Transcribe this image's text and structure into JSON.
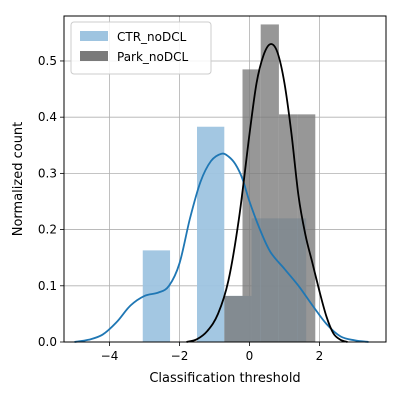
{
  "chart_data": {
    "type": "bar",
    "title": "",
    "xlabel": "Classification threshold",
    "ylabel": "Normalized count",
    "xlim": [
      -5.3,
      3.9
    ],
    "ylim": [
      0,
      0.58
    ],
    "xticks": [
      -4,
      -2,
      0,
      2
    ],
    "xtick_labels": [
      "−4",
      "−2",
      "0",
      "2"
    ],
    "yticks": [
      0.0,
      0.1,
      0.2,
      0.3,
      0.4,
      0.5
    ],
    "ytick_labels": [
      "0.0",
      "0.1",
      "0.2",
      "0.3",
      "0.4",
      "0.5"
    ],
    "grid": true,
    "legend_position": "top-left",
    "series": [
      {
        "name": "CTR_noDCL",
        "color": "#9ec4e0",
        "line_color": "#1f77b4",
        "bins": [
          {
            "x0": -3.05,
            "x1": -2.27,
            "value": 0.163
          },
          {
            "x0": -1.5,
            "x1": -0.72,
            "value": 0.383
          },
          {
            "x0": -0.72,
            "x1": 0.06,
            "value": 0.082
          },
          {
            "x0": 0.06,
            "x1": 0.84,
            "value": 0.22
          },
          {
            "x0": 0.84,
            "x1": 1.62,
            "value": 0.22
          }
        ],
        "kde": {
          "x": [
            -5.0,
            -4.6,
            -4.2,
            -3.8,
            -3.4,
            -3.0,
            -2.6,
            -2.3,
            -2.0,
            -1.7,
            -1.4,
            -1.1,
            -0.8,
            -0.6,
            -0.4,
            -0.2,
            0.0,
            0.3,
            0.6,
            1.0,
            1.4,
            1.8,
            2.2,
            2.6,
            3.0,
            3.4
          ],
          "y": [
            0.0,
            0.004,
            0.013,
            0.035,
            0.065,
            0.082,
            0.088,
            0.1,
            0.14,
            0.22,
            0.285,
            0.322,
            0.335,
            0.33,
            0.316,
            0.29,
            0.25,
            0.2,
            0.16,
            0.13,
            0.1,
            0.065,
            0.032,
            0.01,
            0.003,
            0.0
          ]
        }
      },
      {
        "name": "Park_noDCL",
        "color": "#7a7a7a",
        "line_color": "#000000",
        "bins": [
          {
            "x0": -0.72,
            "x1": -0.2,
            "value": 0.082
          },
          {
            "x0": -0.2,
            "x1": 0.32,
            "value": 0.485
          },
          {
            "x0": 0.32,
            "x1": 0.84,
            "value": 0.565
          },
          {
            "x0": 0.84,
            "x1": 1.36,
            "value": 0.405
          },
          {
            "x0": 1.36,
            "x1": 1.88,
            "value": 0.405
          }
        ],
        "kde": {
          "x": [
            -1.8,
            -1.5,
            -1.2,
            -0.9,
            -0.6,
            -0.3,
            0.0,
            0.2,
            0.4,
            0.6,
            0.8,
            1.0,
            1.2,
            1.4,
            1.6,
            1.8,
            2.0,
            2.2,
            2.4,
            2.6,
            2.8
          ],
          "y": [
            0.0,
            0.005,
            0.02,
            0.05,
            0.11,
            0.22,
            0.37,
            0.46,
            0.51,
            0.53,
            0.515,
            0.46,
            0.37,
            0.26,
            0.19,
            0.14,
            0.09,
            0.045,
            0.015,
            0.004,
            0.0
          ]
        }
      }
    ]
  }
}
